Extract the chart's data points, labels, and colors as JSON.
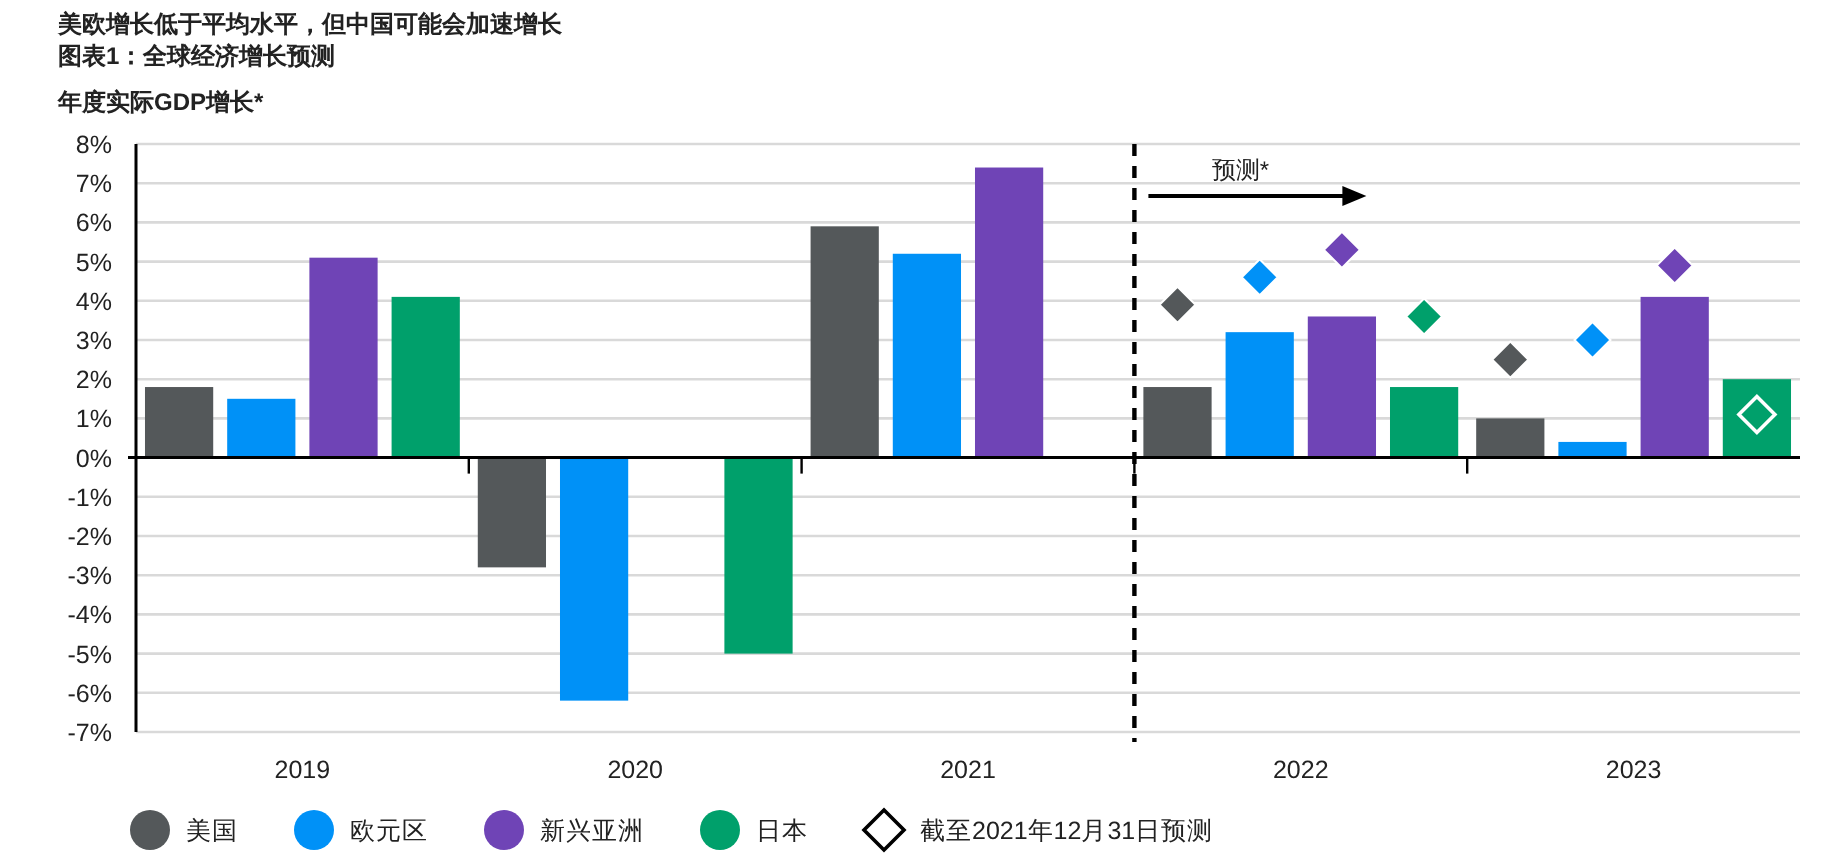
{
  "chart_data": {
    "type": "bar",
    "title": "美欧增长低于平均水平，但中国可能会加速增长",
    "subtitle": "图表1：全球经济增长预测",
    "ylabel": "年度实际GDP增长*",
    "categories": [
      "2019",
      "2020",
      "2021",
      "2022",
      "2023"
    ],
    "series": [
      {
        "name": "美国",
        "color": "#54585a",
        "values": [
          1.8,
          -2.8,
          5.9,
          1.8,
          1.0
        ]
      },
      {
        "name": "欧元区",
        "color": "#0091f7",
        "values": [
          1.5,
          -6.2,
          5.2,
          3.2,
          0.4
        ]
      },
      {
        "name": "新兴亚洲",
        "color": "#6f44b6",
        "values": [
          5.1,
          null,
          7.4,
          3.6,
          4.1
        ]
      },
      {
        "name": "日本",
        "color": "#00a06b",
        "values": [
          4.1,
          -5.0,
          null,
          1.8,
          2.0
        ]
      },
      {
        "type": "scatter",
        "color": "#54585a",
        "marker": "diamond",
        "values": [
          null,
          null,
          null,
          3.9,
          2.5
        ]
      },
      {
        "type": "scatter",
        "color": "#0091f7",
        "marker": "diamond",
        "values": [
          null,
          null,
          null,
          4.6,
          3.0
        ]
      },
      {
        "type": "scatter",
        "color": "#6f44b6",
        "marker": "diamond",
        "values": [
          null,
          null,
          null,
          5.3,
          4.9
        ]
      },
      {
        "type": "scatter",
        "marker": "diamond",
        "values": [
          null,
          null,
          null,
          3.6,
          1.1
        ],
        "colors": [
          null,
          null,
          null,
          "#00a06b",
          "#ffffff"
        ]
      }
    ],
    "ylim": [
      -7,
      8
    ],
    "yticks": [
      {
        "value": -7,
        "label": "-7%"
      },
      {
        "value": -6,
        "label": "-6%"
      },
      {
        "value": -5,
        "label": "-5%"
      },
      {
        "value": -4,
        "label": "-4%"
      },
      {
        "value": -3,
        "label": "-3%"
      },
      {
        "value": -2,
        "label": "-2%"
      },
      {
        "value": -1,
        "label": "-1%"
      },
      {
        "value": 0,
        "label": "0%"
      },
      {
        "value": 1,
        "label": "1%"
      },
      {
        "value": 2,
        "label": "2%"
      },
      {
        "value": 3,
        "label": "3%"
      },
      {
        "value": 4,
        "label": "4%"
      },
      {
        "value": 5,
        "label": "5%"
      },
      {
        "value": 6,
        "label": "6%"
      },
      {
        "value": 7,
        "label": "7%"
      },
      {
        "value": 8,
        "label": "8%"
      }
    ],
    "grid": "y",
    "legend": "bottom",
    "annotations": [
      "预测*",
      "截至2021年12月31日预测"
    ],
    "ref_lines": [
      {
        "axis": "x",
        "value": "2022",
        "line_style": "dashed",
        "color": "#000000"
      }
    ]
  }
}
